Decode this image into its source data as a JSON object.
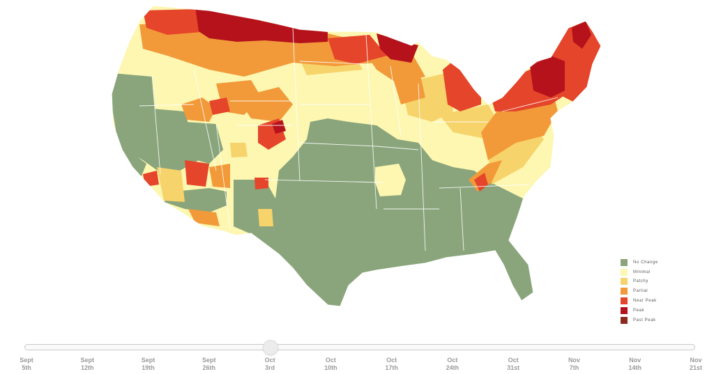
{
  "legend": {
    "items": [
      {
        "label": "No Change",
        "color": "#8aa57c"
      },
      {
        "label": "Minimal",
        "color": "#fdf7b1"
      },
      {
        "label": "Patchy",
        "color": "#f7d36b"
      },
      {
        "label": "Partial",
        "color": "#f29a3a"
      },
      {
        "label": "Near Peak",
        "color": "#e5452a"
      },
      {
        "label": "Peak",
        "color": "#b5121b"
      },
      {
        "label": "Past Peak",
        "color": "#8c2a1e"
      }
    ]
  },
  "timeline": {
    "selected_index": 4,
    "dates": [
      {
        "month": "Sept",
        "day": "5th"
      },
      {
        "month": "Sept",
        "day": "12th"
      },
      {
        "month": "Sept",
        "day": "19th"
      },
      {
        "month": "Sept",
        "day": "26th"
      },
      {
        "month": "Oct",
        "day": "3rd"
      },
      {
        "month": "Oct",
        "day": "10th"
      },
      {
        "month": "Oct",
        "day": "17th"
      },
      {
        "month": "Oct",
        "day": "24th"
      },
      {
        "month": "Oct",
        "day": "31st"
      },
      {
        "month": "Nov",
        "day": "7th"
      },
      {
        "month": "Nov",
        "day": "14th"
      },
      {
        "month": "Nov",
        "day": "21st"
      }
    ]
  },
  "map": {
    "region": "contiguous-united-states",
    "regional_levels": {
      "pacific-northwest-coast": "No Change",
      "inland-northwest": "Minimal",
      "northern-rockies-border": "Peak",
      "northern-plains-border": "Near Peak",
      "great-basin": "No Change",
      "central-rockies": "Partial",
      "southwest-mountains": "Patchy",
      "central-plains": "Minimal",
      "south-central": "No Change",
      "southeast": "No Change",
      "ohio-valley": "Minimal",
      "upper-midwest": "Partial",
      "michigan": "Near Peak",
      "upper-peninsula": "Peak",
      "appalachians": "Partial",
      "new-england": "Near Peak",
      "adirondacks-northern-new-england": "Peak"
    }
  }
}
